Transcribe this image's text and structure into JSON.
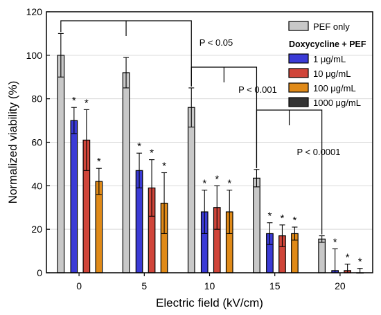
{
  "chart_data": {
    "type": "bar",
    "xlabel": "Electric field (kV/cm)",
    "ylabel": "Normalized viability (%)",
    "ylim": [
      0,
      120
    ],
    "yticks": [
      0,
      20,
      40,
      60,
      80,
      100,
      120
    ],
    "categories": [
      "0",
      "5",
      "10",
      "15",
      "20"
    ],
    "legend": {
      "placement": "top-right",
      "control_label": "PEF only",
      "group_title": "Doxycycline + PEF"
    },
    "series": [
      {
        "name": "PEF only",
        "color": "#c8c8c8",
        "values": [
          100,
          92,
          76,
          43.5,
          15.5
        ],
        "errors": [
          10,
          7,
          9,
          4,
          1.5
        ],
        "significance": [
          "",
          "",
          "",
          "",
          ""
        ]
      },
      {
        "name": "1 μg/mL",
        "color": "#3b3bd6",
        "values": [
          70,
          47,
          28,
          18,
          1
        ],
        "errors": [
          6,
          8,
          10,
          5,
          10
        ],
        "significance": [
          "*",
          "*",
          "*",
          "*",
          "*"
        ]
      },
      {
        "name": "10 μg/mL",
        "color": "#d0453a",
        "values": [
          61,
          39,
          30,
          17,
          1
        ],
        "errors": [
          14,
          13,
          10,
          5,
          3
        ],
        "significance": [
          "*",
          "*",
          "*",
          "*",
          "*"
        ]
      },
      {
        "name": "100 μg/mL",
        "color": "#e08a18",
        "values": [
          42,
          32,
          28,
          18,
          0
        ],
        "errors": [
          6,
          14,
          10,
          3,
          2
        ],
        "significance": [
          "*",
          "*",
          "*",
          "*",
          "*"
        ]
      },
      {
        "name": "1000 μg/mL",
        "color": "#333333",
        "values": [
          null,
          null,
          null,
          null,
          null
        ],
        "errors": [
          null,
          null,
          null,
          null,
          null
        ],
        "significance": [
          "",
          "",
          "",
          "",
          ""
        ]
      }
    ],
    "annotations": [
      {
        "text": "P < 0.05",
        "from_category": "0",
        "to_category": "10"
      },
      {
        "text": "P < 0.001",
        "from_category": "10",
        "to_category": "15"
      },
      {
        "text": "P < 0.0001",
        "from_category": "15",
        "to_category": "20"
      }
    ]
  }
}
